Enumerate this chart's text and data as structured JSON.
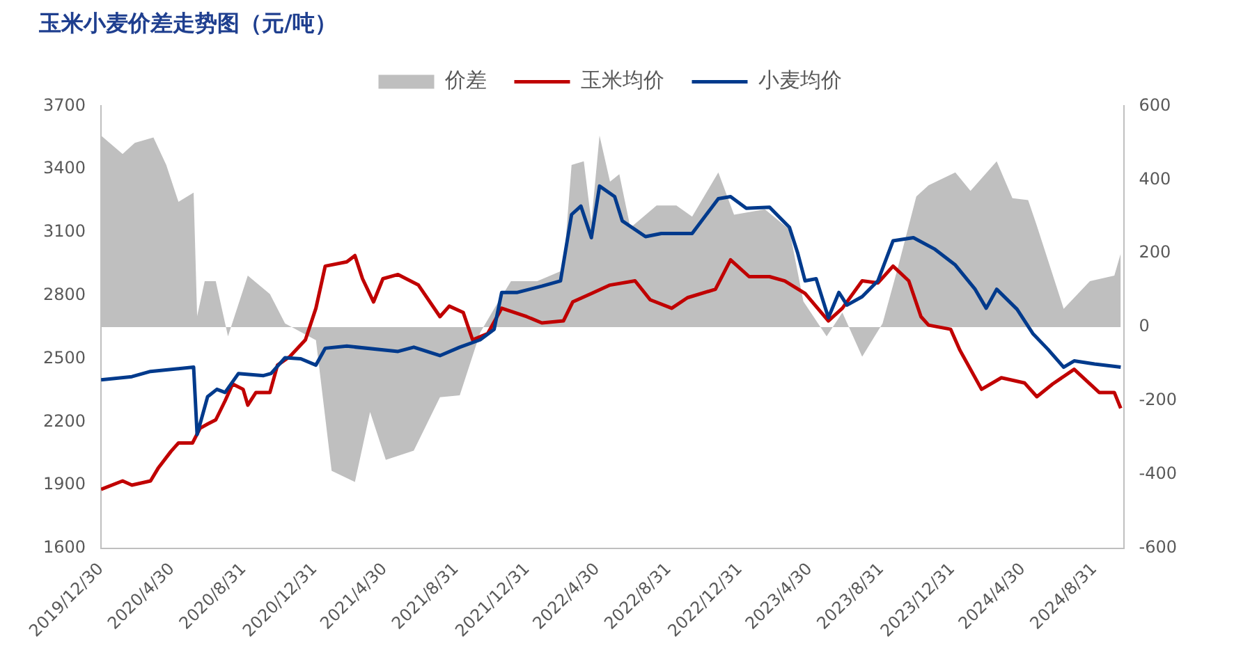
{
  "chart_data": {
    "type": "line",
    "title": "玉米小麦价差走势图（元/吨）",
    "legend": "top",
    "grid": false,
    "xlim": [
      "2019-12-30",
      "2024-10-20"
    ],
    "xticks": [
      {
        "value": "2019-12-30",
        "label": "2019/12/30"
      },
      {
        "value": "2020-04-30",
        "label": "2020/4/30"
      },
      {
        "value": "2020-08-31",
        "label": "2020/8/31"
      },
      {
        "value": "2020-12-31",
        "label": "2020/12/31"
      },
      {
        "value": "2021-04-30",
        "label": "2021/4/30"
      },
      {
        "value": "2021-08-31",
        "label": "2021/8/31"
      },
      {
        "value": "2021-12-31",
        "label": "2021/12/31"
      },
      {
        "value": "2022-04-30",
        "label": "2022/4/30"
      },
      {
        "value": "2022-08-31",
        "label": "2022/8/31"
      },
      {
        "value": "2022-12-31",
        "label": "2022/12/31"
      },
      {
        "value": "2023-04-30",
        "label": "2023/4/30"
      },
      {
        "value": "2023-08-31",
        "label": "2023/8/31"
      },
      {
        "value": "2023-12-31",
        "label": "2023/12/31"
      },
      {
        "value": "2024-04-30",
        "label": "2024/4/30"
      },
      {
        "value": "2024-08-31",
        "label": "2024/8/31"
      }
    ],
    "ylim": [
      1600,
      3700
    ],
    "yticks": [
      1600,
      1900,
      2200,
      2500,
      2800,
      3100,
      3400,
      3700
    ],
    "y2lim": [
      -600,
      600
    ],
    "y2ticks": [
      -600,
      -400,
      -200,
      0,
      200,
      400,
      600
    ],
    "series": [
      {
        "name": "价差",
        "type": "area",
        "axis": "y2",
        "color": "#bfbfbf",
        "x": [
          "2019-12-30",
          "2020-02-05",
          "2020-02-26",
          "2020-03-29",
          "2020-04-20",
          "2020-05-11",
          "2020-06-06",
          "2020-06-12",
          "2020-06-25",
          "2020-07-14",
          "2020-08-04",
          "2020-09-07",
          "2020-10-15",
          "2020-11-10",
          "2021-01-02",
          "2021-01-29",
          "2021-03-10",
          "2021-04-05",
          "2021-05-02",
          "2021-06-19",
          "2021-08-03",
          "2021-09-06",
          "2021-10-11",
          "2021-11-04",
          "2021-12-03",
          "2022-01-17",
          "2022-03-03",
          "2022-03-17",
          "2022-04-07",
          "2022-04-20",
          "2022-05-04",
          "2022-05-22",
          "2022-06-07",
          "2022-06-26",
          "2022-08-10",
          "2022-09-13",
          "2022-10-10",
          "2022-11-24",
          "2022-12-21",
          "2023-02-12",
          "2023-03-26",
          "2023-04-19",
          "2023-05-29",
          "2023-06-25",
          "2023-07-29",
          "2023-09-02",
          "2023-09-28",
          "2023-10-30",
          "2023-11-20",
          "2024-01-05",
          "2024-01-31",
          "2024-03-16",
          "2024-04-12",
          "2024-05-09",
          "2024-05-24",
          "2024-07-09",
          "2024-08-23",
          "2024-10-04",
          "2024-10-15"
        ],
        "values": [
          520,
          470,
          500,
          515,
          440,
          340,
          365,
          30,
          125,
          125,
          -25,
          140,
          90,
          10,
          -35,
          -390,
          -420,
          -230,
          -360,
          -335,
          -190,
          -185,
          -15,
          50,
          125,
          125,
          155,
          440,
          450,
          285,
          520,
          395,
          415,
          270,
          330,
          330,
          300,
          420,
          305,
          320,
          265,
          70,
          -25,
          40,
          -80,
          10,
          160,
          355,
          385,
          420,
          370,
          450,
          350,
          345,
          275,
          50,
          125,
          140,
          200
        ]
      },
      {
        "name": "玉米均价",
        "color": "#c00000",
        "x": [
          "2019-12-30",
          "2020-02-05",
          "2020-02-21",
          "2020-03-24",
          "2020-04-06",
          "2020-04-28",
          "2020-05-11",
          "2020-06-04",
          "2020-06-17",
          "2020-06-30",
          "2020-07-14",
          "2020-07-30",
          "2020-08-12",
          "2020-08-30",
          "2020-09-07",
          "2020-09-21",
          "2020-10-15",
          "2020-10-28",
          "2020-11-18",
          "2020-12-15",
          "2021-01-02",
          "2021-01-18",
          "2021-02-24",
          "2021-03-10",
          "2021-03-23",
          "2021-04-11",
          "2021-04-27",
          "2021-05-23",
          "2021-06-27",
          "2021-08-03",
          "2021-08-19",
          "2021-09-12",
          "2021-09-28",
          "2021-10-24",
          "2021-11-17",
          "2021-12-30",
          "2022-01-25",
          "2022-03-03",
          "2022-03-19",
          "2022-04-20",
          "2022-05-22",
          "2022-07-04",
          "2022-07-30",
          "2022-09-05",
          "2022-10-02",
          "2022-11-19",
          "2022-12-15",
          "2023-01-16",
          "2023-02-20",
          "2023-03-18",
          "2023-04-22",
          "2023-06-01",
          "2023-06-25",
          "2023-07-29",
          "2023-08-25",
          "2023-09-20",
          "2023-10-17",
          "2023-11-07",
          "2023-11-20",
          "2023-12-28",
          "2024-01-13",
          "2024-02-19",
          "2024-03-24",
          "2024-05-03",
          "2024-05-24",
          "2024-06-20",
          "2024-07-27",
          "2024-09-08",
          "2024-10-04",
          "2024-10-15"
        ],
        "values": [
          1880,
          1920,
          1900,
          1920,
          1980,
          2060,
          2100,
          2100,
          2170,
          2190,
          2210,
          2300,
          2380,
          2355,
          2280,
          2340,
          2340,
          2470,
          2510,
          2590,
          2740,
          2940,
          2960,
          2990,
          2880,
          2770,
          2880,
          2900,
          2850,
          2700,
          2750,
          2720,
          2590,
          2620,
          2740,
          2700,
          2670,
          2680,
          2770,
          2810,
          2850,
          2870,
          2780,
          2740,
          2790,
          2830,
          2970,
          2890,
          2890,
          2870,
          2810,
          2680,
          2740,
          2870,
          2860,
          2940,
          2870,
          2700,
          2660,
          2640,
          2540,
          2355,
          2410,
          2385,
          2320,
          2380,
          2450,
          2340,
          2340,
          2265
        ]
      },
      {
        "name": "小麦均价",
        "color": "#003a8c",
        "x": [
          "2019-12-30",
          "2020-02-21",
          "2020-03-24",
          "2020-06-06",
          "2020-06-12",
          "2020-06-30",
          "2020-07-16",
          "2020-07-30",
          "2020-08-22",
          "2020-10-04",
          "2020-10-17",
          "2020-11-10",
          "2020-12-07",
          "2021-01-02",
          "2021-01-18",
          "2021-02-24",
          "2021-05-23",
          "2021-06-19",
          "2021-08-03",
          "2021-09-06",
          "2021-10-11",
          "2021-11-04",
          "2021-11-17",
          "2021-12-14",
          "2022-01-25",
          "2022-02-26",
          "2022-03-17",
          "2022-04-02",
          "2022-04-20",
          "2022-05-04",
          "2022-05-30",
          "2022-06-12",
          "2022-07-22",
          "2022-08-18",
          "2022-10-10",
          "2022-11-24",
          "2022-12-15",
          "2023-01-11",
          "2023-02-20",
          "2023-03-26",
          "2023-04-09",
          "2023-04-22",
          "2023-05-11",
          "2023-06-01",
          "2023-06-19",
          "2023-07-03",
          "2023-07-29",
          "2023-08-25",
          "2023-09-20",
          "2023-10-25",
          "2023-12-01",
          "2024-01-05",
          "2024-02-08",
          "2024-02-27",
          "2024-03-16",
          "2024-04-20",
          "2024-05-17",
          "2024-06-12",
          "2024-07-09",
          "2024-07-27",
          "2024-08-31",
          "2024-10-15"
        ],
        "values": [
          2400,
          2415,
          2440,
          2460,
          2140,
          2320,
          2355,
          2340,
          2430,
          2420,
          2430,
          2505,
          2500,
          2470,
          2550,
          2560,
          2535,
          2555,
          2515,
          2555,
          2590,
          2640,
          2815,
          2815,
          2845,
          2870,
          3185,
          3225,
          3075,
          3320,
          3270,
          3155,
          3080,
          3095,
          3095,
          3260,
          3270,
          3215,
          3220,
          3125,
          3005,
          2870,
          2880,
          2695,
          2815,
          2755,
          2795,
          2870,
          3060,
          3075,
          3020,
          2945,
          2830,
          2740,
          2830,
          2735,
          2620,
          2545,
          2460,
          2490,
          2475,
          2460
        ]
      }
    ]
  }
}
